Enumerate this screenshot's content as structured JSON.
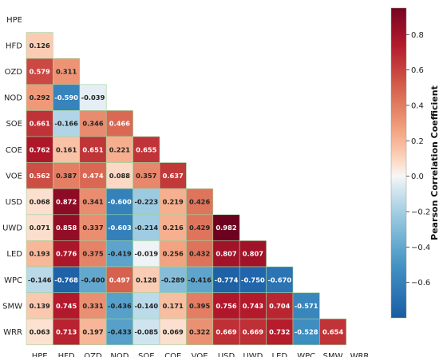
{
  "chart_data": {
    "type": "heatmap",
    "variables": [
      "HPE",
      "HFD",
      "OZD",
      "NOD",
      "SOE",
      "COE",
      "VOE",
      "USD",
      "UWD",
      "LED",
      "WPC",
      "SMW",
      "WRR"
    ],
    "colorbar_label": "Pearson Correlation Coefficient",
    "colorbar_range": [
      -0.8,
      0.95
    ],
    "colorbar_ticks": [
      "−0.6",
      "−0.4",
      "−0.2",
      "0.0",
      "0.2",
      "0.4",
      "0.6",
      "0.8"
    ],
    "colormap": "RdBu_r",
    "mask": "upper-triangle-including-diagonal",
    "grid_color": "#9ed39e",
    "colors": {
      "negative_end": "#1e6fb3",
      "center": "#f7f7f7",
      "positive_end": "#8b0a2a"
    },
    "values": [
      [],
      [
        0.126
      ],
      [
        0.579,
        0.311
      ],
      [
        0.292,
        -0.59,
        -0.039
      ],
      [
        0.661,
        -0.166,
        0.346,
        0.466
      ],
      [
        0.762,
        0.161,
        0.651,
        0.221,
        0.655
      ],
      [
        0.562,
        0.387,
        0.474,
        0.088,
        0.357,
        0.637
      ],
      [
        0.068,
        0.872,
        0.341,
        -0.6,
        -0.223,
        0.219,
        0.426
      ],
      [
        0.071,
        0.858,
        0.337,
        -0.603,
        -0.214,
        0.216,
        0.429,
        0.982
      ],
      [
        0.193,
        0.776,
        0.375,
        -0.419,
        -0.019,
        0.256,
        0.432,
        0.807,
        0.807
      ],
      [
        -0.146,
        -0.768,
        -0.4,
        0.497,
        0.128,
        -0.289,
        -0.416,
        -0.774,
        -0.75,
        -0.67
      ],
      [
        0.139,
        0.745,
        0.331,
        -0.436,
        -0.14,
        0.171,
        0.395,
        0.756,
        0.743,
        0.704,
        -0.571
      ],
      [
        0.063,
        0.713,
        0.197,
        -0.433,
        -0.085,
        0.069,
        0.322,
        0.669,
        0.669,
        0.732,
        -0.528,
        0.654
      ]
    ]
  }
}
